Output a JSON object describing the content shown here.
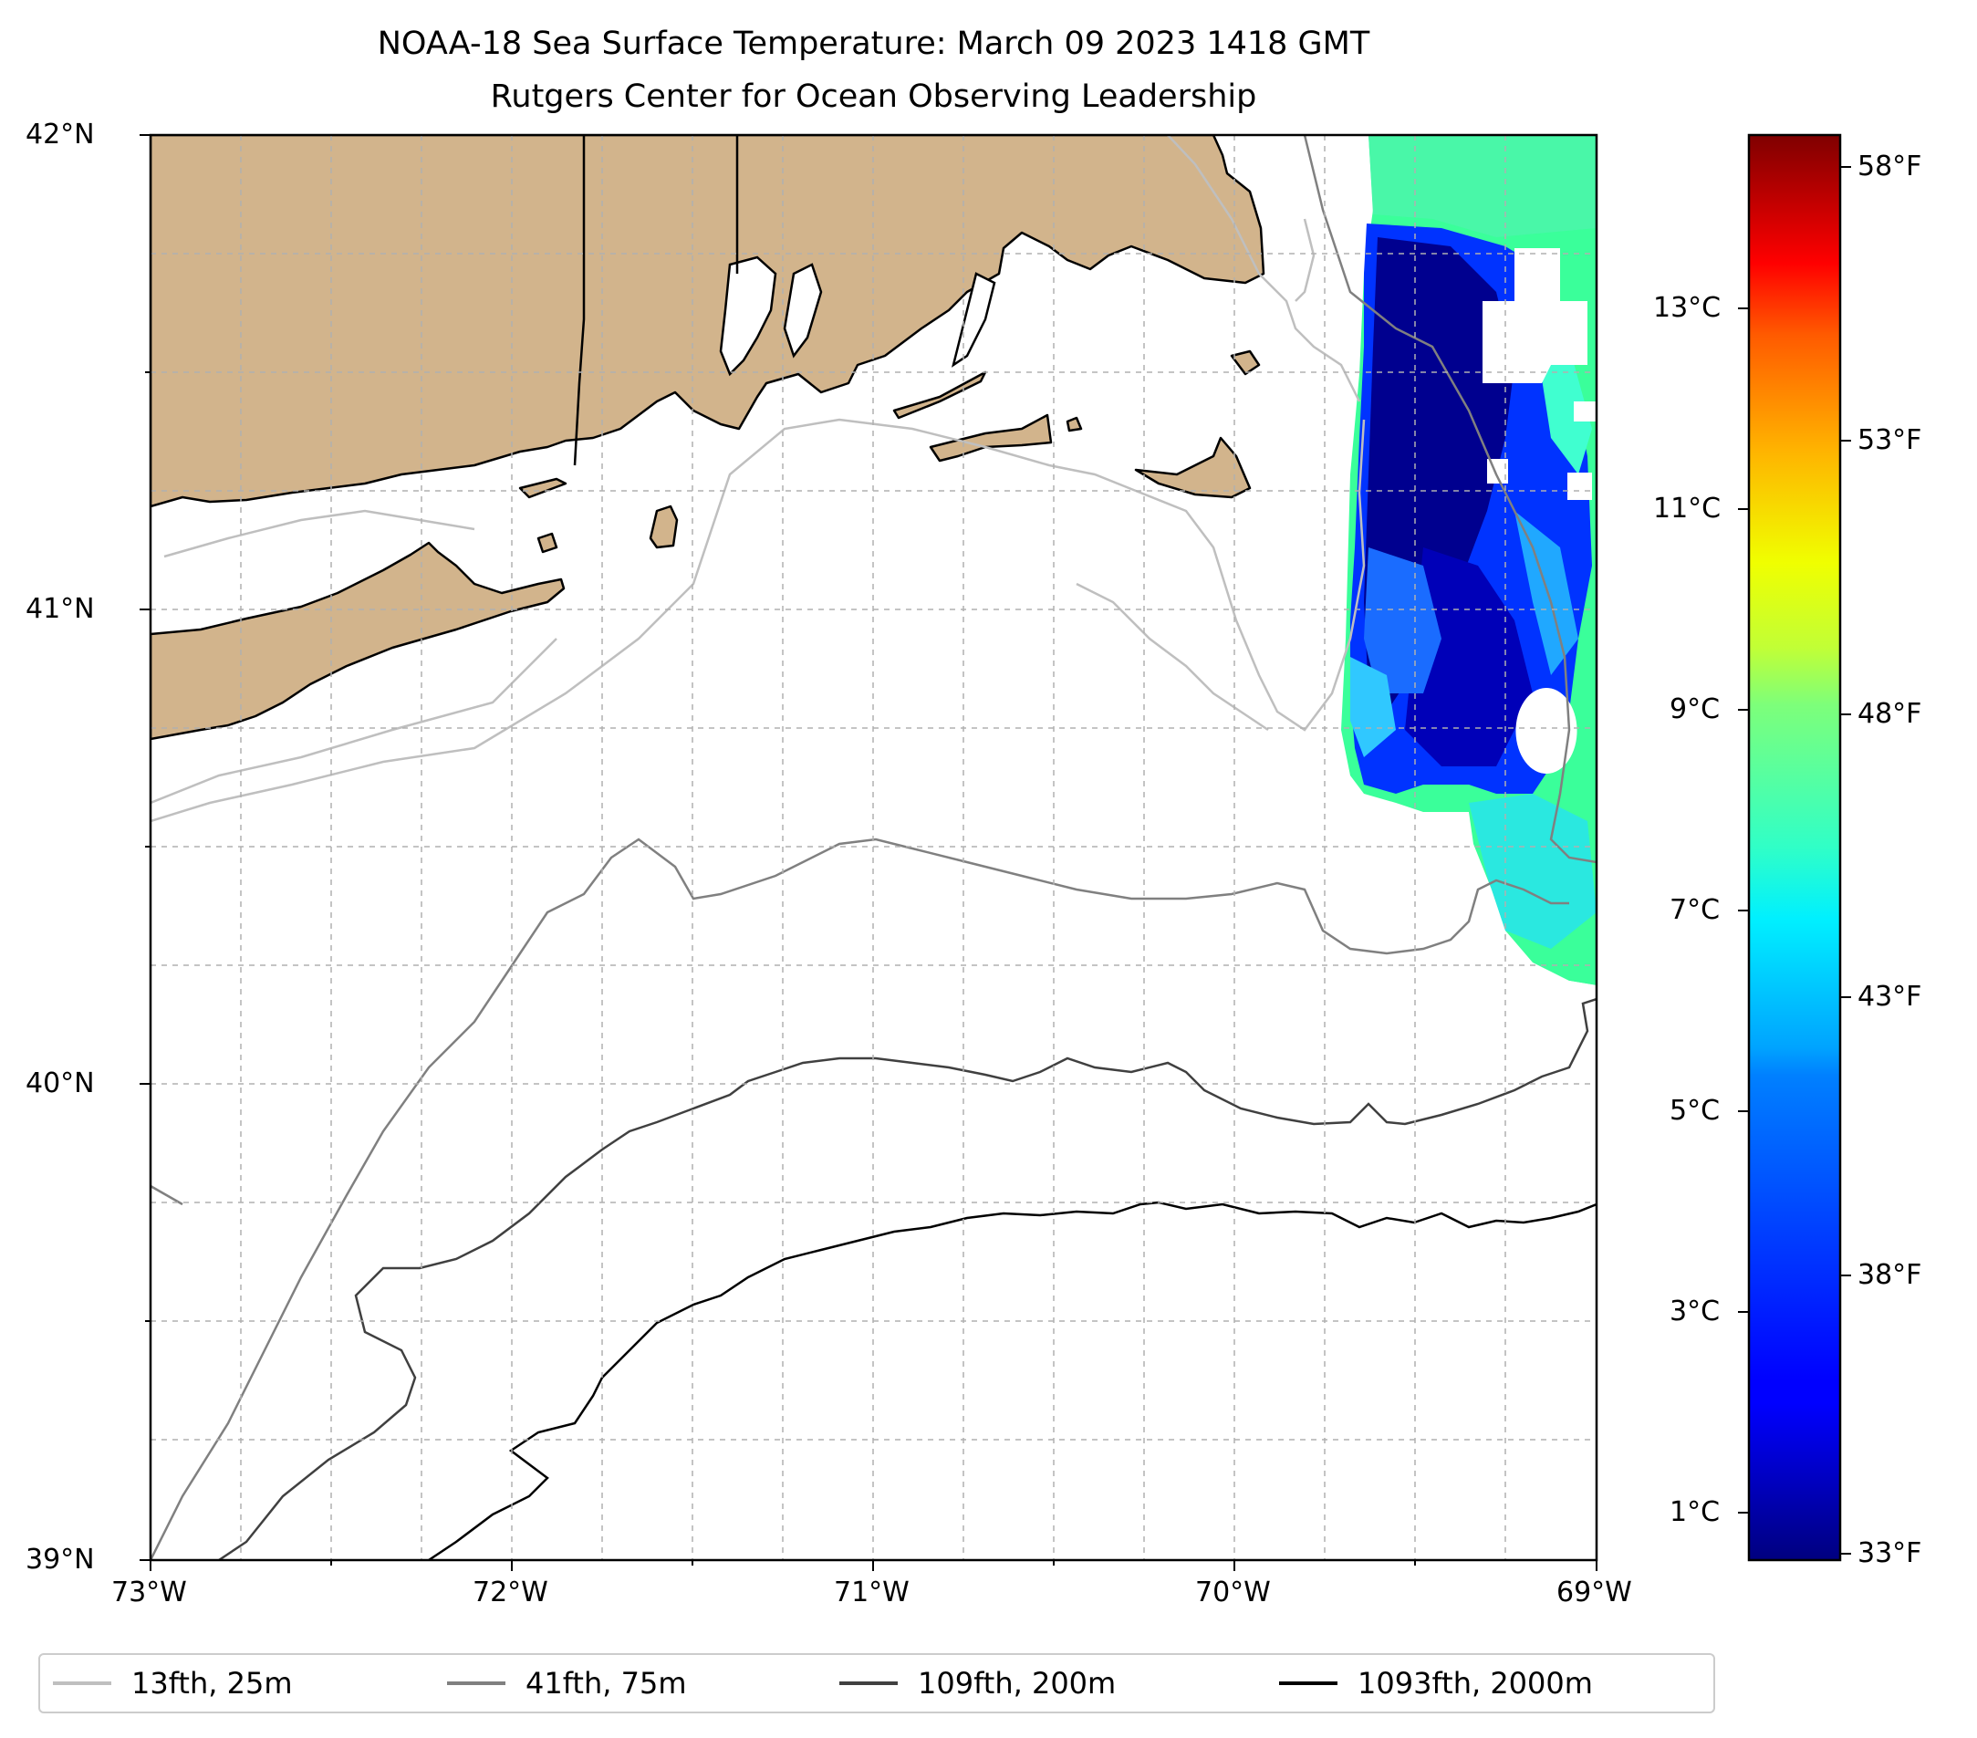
{
  "title": {
    "line1": "NOAA-18 Sea Surface Temperature: March 09 2023 1418 GMT",
    "line2": "Rutgers Center for Ocean Observing Leadership"
  },
  "map": {
    "lon_labels": [
      "73°W",
      "72°W",
      "71°W",
      "70°W",
      "69°W"
    ],
    "lat_labels": [
      "42°N",
      "41°N",
      "40°N",
      "39°N"
    ],
    "lon_range": [
      -73,
      -69
    ],
    "lat_range": [
      39,
      42
    ],
    "gridlines": true,
    "land_color": "#d2b48c",
    "ocean_color": "#ffffff"
  },
  "colorbar": {
    "colormap": "jet",
    "celsius_labels": [
      "13°C",
      "11°C",
      "9°C",
      "7°C",
      "5°C",
      "3°C",
      "1°C"
    ],
    "fahrenheit_labels": [
      "58°F",
      "53°F",
      "48°F",
      "43°F",
      "38°F",
      "33°F"
    ],
    "range_f": [
      33,
      59
    ]
  },
  "legend": {
    "placement": "bottom",
    "items": [
      {
        "label": "13fth, 25m",
        "color": "#bfbfbf"
      },
      {
        "label": "41fth, 75m",
        "color": "#808080"
      },
      {
        "label": "109fth, 200m",
        "color": "#404040"
      },
      {
        "label": "1093fth, 2000m",
        "color": "#000000"
      }
    ]
  }
}
